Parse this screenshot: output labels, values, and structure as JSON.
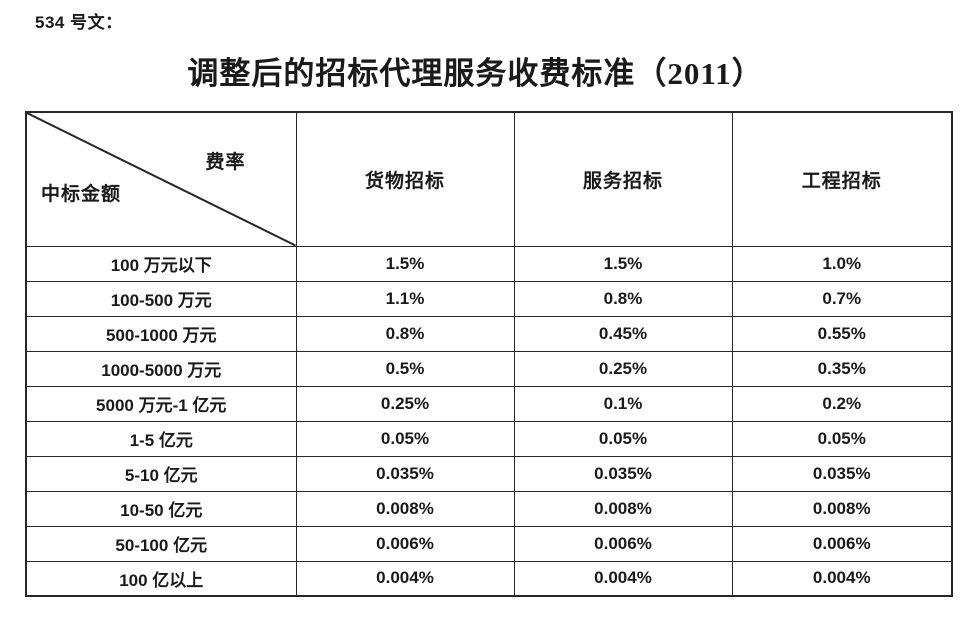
{
  "doc_label": "534 号文：",
  "title": "调整后的招标代理服务收费标准（2011）",
  "table": {
    "corner": {
      "top_right": "费率",
      "bottom_left": "中标金额"
    },
    "columns": [
      "货物招标",
      "服务招标",
      "工程招标"
    ],
    "rows": [
      {
        "amount": "100 万元以下",
        "values": [
          "1.5%",
          "1.5%",
          "1.0%"
        ]
      },
      {
        "amount": "100-500 万元",
        "values": [
          "1.1%",
          "0.8%",
          "0.7%"
        ]
      },
      {
        "amount": "500-1000 万元",
        "values": [
          "0.8%",
          "0.45%",
          "0.55%"
        ]
      },
      {
        "amount": "1000-5000 万元",
        "values": [
          "0.5%",
          "0.25%",
          "0.35%"
        ]
      },
      {
        "amount": "5000 万元-1 亿元",
        "values": [
          "0.25%",
          "0.1%",
          "0.2%"
        ]
      },
      {
        "amount": "1-5 亿元",
        "values": [
          "0.05%",
          "0.05%",
          "0.05%"
        ]
      },
      {
        "amount": "5-10 亿元",
        "values": [
          "0.035%",
          "0.035%",
          "0.035%"
        ]
      },
      {
        "amount": "10-50 亿元",
        "values": [
          "0.008%",
          "0.008%",
          "0.008%"
        ]
      },
      {
        "amount": "50-100 亿元",
        "values": [
          "0.006%",
          "0.006%",
          "0.006%"
        ]
      },
      {
        "amount": "100 亿以上",
        "values": [
          "0.004%",
          "0.004%",
          "0.004%"
        ]
      }
    ]
  },
  "colors": {
    "text": "#1a1a1a",
    "border": "#262626",
    "background": "#ffffff"
  }
}
